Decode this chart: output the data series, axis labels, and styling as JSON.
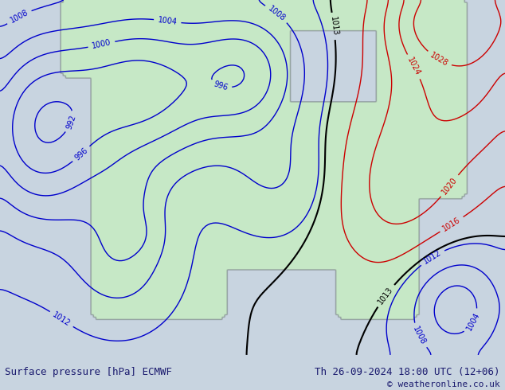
{
  "title_left": "Surface pressure [hPa] ECMWF",
  "title_right": "Th 26-09-2024 18:00 UTC (12+06)",
  "copyright": "© weatheronline.co.uk",
  "bg_color": "#d0d8e8",
  "land_color": "#c8e8c8",
  "contour_color_blue": "#0000cc",
  "contour_color_red": "#cc0000",
  "contour_color_black": "#000000",
  "label_fontsize": 7,
  "footer_fontsize": 9,
  "footer_color": "#1a1a6e"
}
